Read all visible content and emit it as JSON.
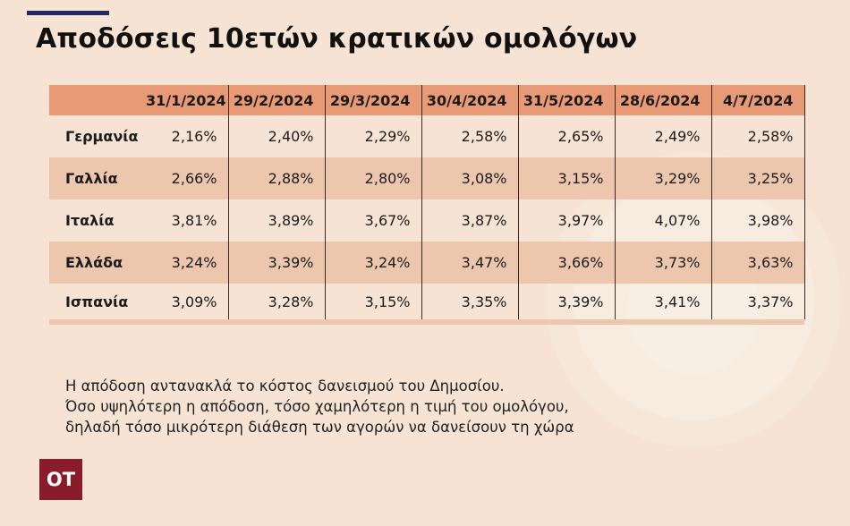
{
  "title": "Αποδόσεις 10ετών κρατικών ομολόγων",
  "chart_data": {
    "type": "table",
    "title": "Αποδόσεις 10ετών κρατικών ομολόγων",
    "columns": [
      "31/1/2024",
      "29/2/2024",
      "29/3/2024",
      "30/4/2024",
      "31/5/2024",
      "28/6/2024",
      "4/7/2024"
    ],
    "rows": [
      {
        "country": "Γερμανία",
        "values": [
          "2,16%",
          "2,40%",
          "2,29%",
          "2,58%",
          "2,65%",
          "2,49%",
          "2,58%"
        ]
      },
      {
        "country": "Γαλλία",
        "values": [
          "2,66%",
          "2,88%",
          "2,80%",
          "3,08%",
          "3,15%",
          "3,29%",
          "3,25%"
        ]
      },
      {
        "country": "Ιταλία",
        "values": [
          "3,81%",
          "3,89%",
          "3,67%",
          "3,87%",
          "3,97%",
          "4,07%",
          "3,98%"
        ]
      },
      {
        "country": "Ελλάδα",
        "values": [
          "3,24%",
          "3,39%",
          "3,24%",
          "3,47%",
          "3,66%",
          "3,73%",
          "3,63%"
        ]
      },
      {
        "country": "Ισπανία",
        "values": [
          "3,09%",
          "3,28%",
          "3,15%",
          "3,35%",
          "3,39%",
          "3,41%",
          "3,37%"
        ]
      }
    ]
  },
  "note": {
    "line1": "Η απόδοση αντανακλά το κόστος δανεισμού του Δημοσίου.",
    "line2": "Όσο υψηλότερη η απόδοση, τόσο χαμηλότερη η τιμή του ομολόγου,",
    "line3": "δηλαδή τόσο μικρότερη διάθεση των αγορών να δανείσουν τη χώρα"
  },
  "logo_text": "ΟΤ",
  "colors": {
    "background": "#f6e3d3",
    "header_row": "#e89a76",
    "alt_row": "#ecc7ad",
    "accent_bar": "#1f2a6b",
    "logo": "#8a1b2a"
  }
}
